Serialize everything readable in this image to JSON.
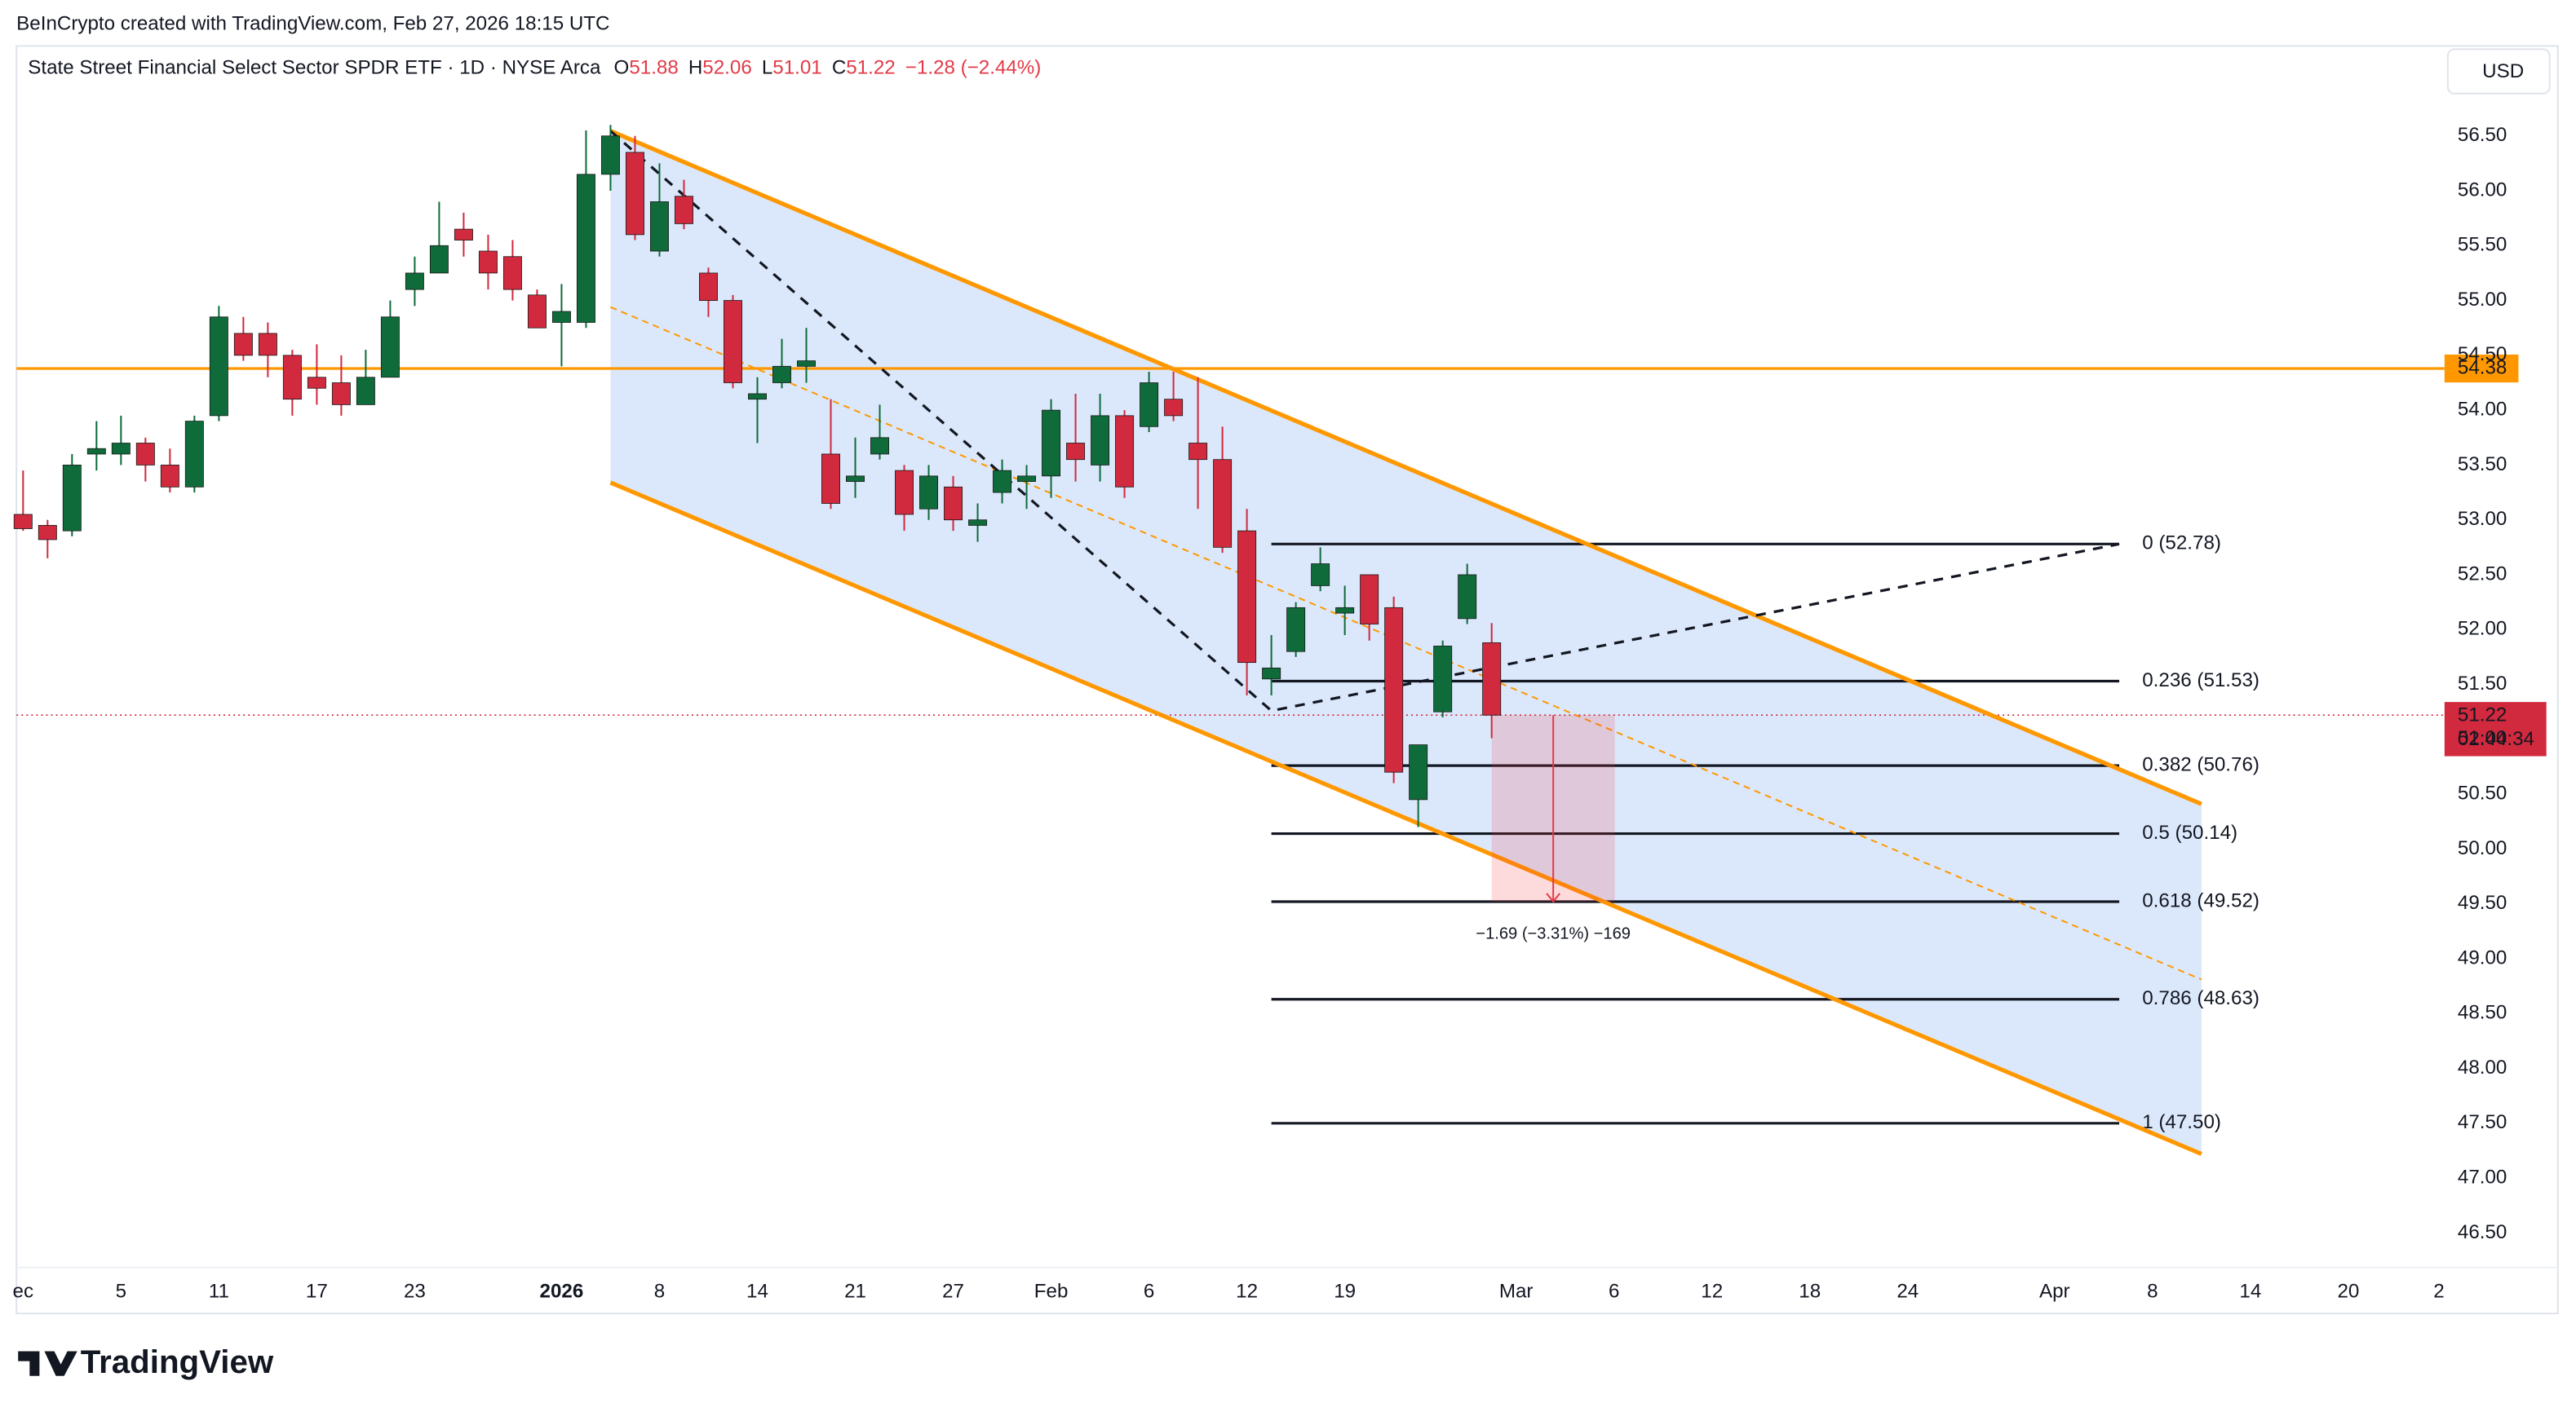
{
  "header": "BeInCrypto created with TradingView.com, Feb 27, 2026 18:15 UTC",
  "currency": "USD",
  "brand": "TradingView",
  "chart_data": {
    "type": "candlestick",
    "legend": {
      "name": "State Street Financial Select Sector SPDR ETF · 1D · NYSE Arca",
      "fields": [
        {
          "key": "O",
          "value": 51.88
        },
        {
          "key": "H",
          "value": 52.06
        },
        {
          "key": "L",
          "value": 51.01
        },
        {
          "key": "C",
          "value": 51.22
        }
      ],
      "change": "−1.28 (−2.44%)",
      "color": "#e23a47"
    },
    "colors": {
      "up": "#0f6b3a",
      "down": "#d1293d",
      "channel": "#ff9800",
      "fill": "#dbe8fb",
      "line": "#131722"
    },
    "xlim": [
      -0.27,
      98.93
    ],
    "ylim": [
      46.17,
      57.29
    ],
    "xticks": [
      {
        "value": 0,
        "label": "ec"
      },
      {
        "value": 4,
        "label": "5"
      },
      {
        "value": 8,
        "label": "11"
      },
      {
        "value": 12,
        "label": "17"
      },
      {
        "value": 16,
        "label": "23"
      },
      {
        "value": 22,
        "label": "2026",
        "bold": true
      },
      {
        "value": 26,
        "label": "8"
      },
      {
        "value": 30,
        "label": "14"
      },
      {
        "value": 34,
        "label": "21"
      },
      {
        "value": 38,
        "label": "27"
      },
      {
        "value": 42,
        "label": "Feb"
      },
      {
        "value": 46,
        "label": "6"
      },
      {
        "value": 50,
        "label": "12"
      },
      {
        "value": 54,
        "label": "19"
      },
      {
        "value": 61,
        "label": "Mar"
      },
      {
        "value": 65,
        "label": "6"
      },
      {
        "value": 69,
        "label": "12"
      },
      {
        "value": 73,
        "label": "18"
      },
      {
        "value": 77,
        "label": "24"
      },
      {
        "value": 83,
        "label": "Apr"
      },
      {
        "value": 87,
        "label": "8"
      },
      {
        "value": 91,
        "label": "14"
      },
      {
        "value": 95,
        "label": "20"
      },
      {
        "value": 98.7,
        "label": "2"
      }
    ],
    "yticks": [
      {
        "value": 46.5,
        "label": "46.50"
      },
      {
        "value": 47,
        "label": "47.00"
      },
      {
        "value": 47.5,
        "label": "47.50"
      },
      {
        "value": 48,
        "label": "48.00"
      },
      {
        "value": 48.5,
        "label": "48.50"
      },
      {
        "value": 49,
        "label": "49.00"
      },
      {
        "value": 49.5,
        "label": "49.50"
      },
      {
        "value": 50,
        "label": "50.00"
      },
      {
        "value": 50.5,
        "label": "50.50"
      },
      {
        "value": 51,
        "label": "51.00"
      },
      {
        "value": 51.5,
        "label": "51.50"
      },
      {
        "value": 52,
        "label": "52.00"
      },
      {
        "value": 52.5,
        "label": "52.50"
      },
      {
        "value": 53,
        "label": "53.00"
      },
      {
        "value": 53.5,
        "label": "53.50"
      },
      {
        "value": 54,
        "label": "54.00"
      },
      {
        "value": 54.5,
        "label": "54.50"
      },
      {
        "value": 55,
        "label": "55.00"
      },
      {
        "value": 55.5,
        "label": "55.50"
      },
      {
        "value": 56,
        "label": "56.00"
      },
      {
        "value": 56.5,
        "label": "56.50"
      }
    ],
    "ohlc": [
      [
        53.05,
        53.45,
        52.9,
        52.92
      ],
      [
        52.95,
        53.0,
        52.65,
        52.82
      ],
      [
        52.9,
        53.6,
        52.85,
        53.5
      ],
      [
        53.6,
        53.9,
        53.45,
        53.65
      ],
      [
        53.6,
        53.95,
        53.5,
        53.7
      ],
      [
        53.7,
        53.75,
        53.35,
        53.5
      ],
      [
        53.5,
        53.65,
        53.25,
        53.3
      ],
      [
        53.3,
        53.95,
        53.25,
        53.9
      ],
      [
        53.95,
        54.95,
        53.9,
        54.85
      ],
      [
        54.7,
        54.85,
        54.45,
        54.5
      ],
      [
        54.7,
        54.8,
        54.3,
        54.5
      ],
      [
        54.5,
        54.55,
        53.95,
        54.1
      ],
      [
        54.3,
        54.6,
        54.05,
        54.2
      ],
      [
        54.25,
        54.5,
        53.95,
        54.05
      ],
      [
        54.05,
        54.55,
        54.05,
        54.3
      ],
      [
        54.3,
        55.0,
        54.3,
        54.85
      ],
      [
        55.1,
        55.4,
        54.95,
        55.25
      ],
      [
        55.25,
        55.9,
        55.25,
        55.5
      ],
      [
        55.65,
        55.8,
        55.4,
        55.55
      ],
      [
        55.45,
        55.6,
        55.1,
        55.25
      ],
      [
        55.4,
        55.55,
        55.0,
        55.1
      ],
      [
        55.05,
        55.1,
        54.75,
        54.75
      ],
      [
        54.8,
        55.15,
        54.4,
        54.9
      ],
      [
        54.8,
        56.55,
        54.75,
        56.15
      ],
      [
        56.15,
        56.6,
        56.0,
        56.5
      ],
      [
        56.35,
        56.5,
        55.55,
        55.6
      ],
      [
        55.45,
        56.25,
        55.4,
        55.9
      ],
      [
        55.95,
        56.1,
        55.65,
        55.7
      ],
      [
        55.25,
        55.3,
        54.85,
        55.0
      ],
      [
        55.0,
        55.05,
        54.2,
        54.25
      ],
      [
        54.1,
        54.3,
        53.7,
        54.15
      ],
      [
        54.25,
        54.65,
        54.2,
        54.4
      ],
      [
        54.4,
        54.75,
        54.25,
        54.45
      ],
      [
        53.6,
        54.1,
        53.1,
        53.15
      ],
      [
        53.35,
        53.75,
        53.2,
        53.4
      ],
      [
        53.6,
        54.05,
        53.55,
        53.75
      ],
      [
        53.45,
        53.5,
        52.9,
        53.05
      ],
      [
        53.1,
        53.5,
        53.0,
        53.4
      ],
      [
        53.3,
        53.4,
        52.9,
        53.0
      ],
      [
        52.95,
        53.15,
        52.8,
        53.0
      ],
      [
        53.25,
        53.55,
        53.15,
        53.45
      ],
      [
        53.35,
        53.5,
        53.1,
        53.4
      ],
      [
        53.4,
        54.1,
        53.2,
        54.0
      ],
      [
        53.7,
        54.15,
        53.35,
        53.55
      ],
      [
        53.5,
        54.15,
        53.35,
        53.95
      ],
      [
        53.95,
        54.0,
        53.2,
        53.3
      ],
      [
        53.85,
        54.35,
        53.8,
        54.25
      ],
      [
        54.1,
        54.35,
        53.9,
        53.95
      ],
      [
        53.7,
        54.3,
        53.1,
        53.55
      ],
      [
        53.55,
        53.85,
        52.7,
        52.75
      ],
      [
        52.9,
        53.1,
        51.4,
        51.7
      ],
      [
        51.55,
        51.95,
        51.4,
        51.65
      ],
      [
        51.8,
        52.25,
        51.75,
        52.2
      ],
      [
        52.4,
        52.75,
        52.35,
        52.6
      ],
      [
        52.15,
        52.4,
        51.95,
        52.2
      ],
      [
        52.5,
        52.5,
        51.9,
        52.05
      ],
      [
        52.2,
        52.3,
        50.6,
        50.7
      ],
      [
        50.45,
        50.95,
        50.2,
        50.95
      ],
      [
        51.25,
        51.9,
        51.2,
        51.85
      ],
      [
        52.1,
        52.6,
        52.05,
        52.5
      ],
      [
        51.88,
        52.06,
        51.01,
        51.22
      ]
    ],
    "hline": {
      "value": 54.38
    },
    "last": {
      "value": 51.22,
      "countdown": "02:44:34"
    },
    "channel": {
      "x": [
        24,
        89
      ],
      "upper": [
        56.545,
        50.41
      ],
      "lower": [
        53.34,
        47.22
      ],
      "mid": [
        54.94,
        48.81
      ]
    },
    "zigzag": {
      "x": [
        24,
        51,
        85.64
      ],
      "y": [
        56.545,
        51.26,
        52.78
      ]
    },
    "fib": {
      "x": [
        51,
        85.64
      ],
      "levels": [
        {
          "value": 52.78,
          "label": "0 (52.78)"
        },
        {
          "value": 51.53,
          "label": "0.236 (51.53)"
        },
        {
          "value": 50.76,
          "label": "0.382 (50.76)"
        },
        {
          "value": 50.14,
          "label": "0.5 (50.14)"
        },
        {
          "value": 49.52,
          "label": "0.618 (49.52)"
        },
        {
          "value": 48.63,
          "label": "0.786 (48.63)"
        },
        {
          "value": 47.5,
          "label": "1 (47.50)"
        }
      ]
    },
    "measure": {
      "x": [
        60,
        65.03
      ],
      "y": [
        51.22,
        49.52
      ],
      "label": "−1.69 (−3.31%) −169"
    }
  }
}
